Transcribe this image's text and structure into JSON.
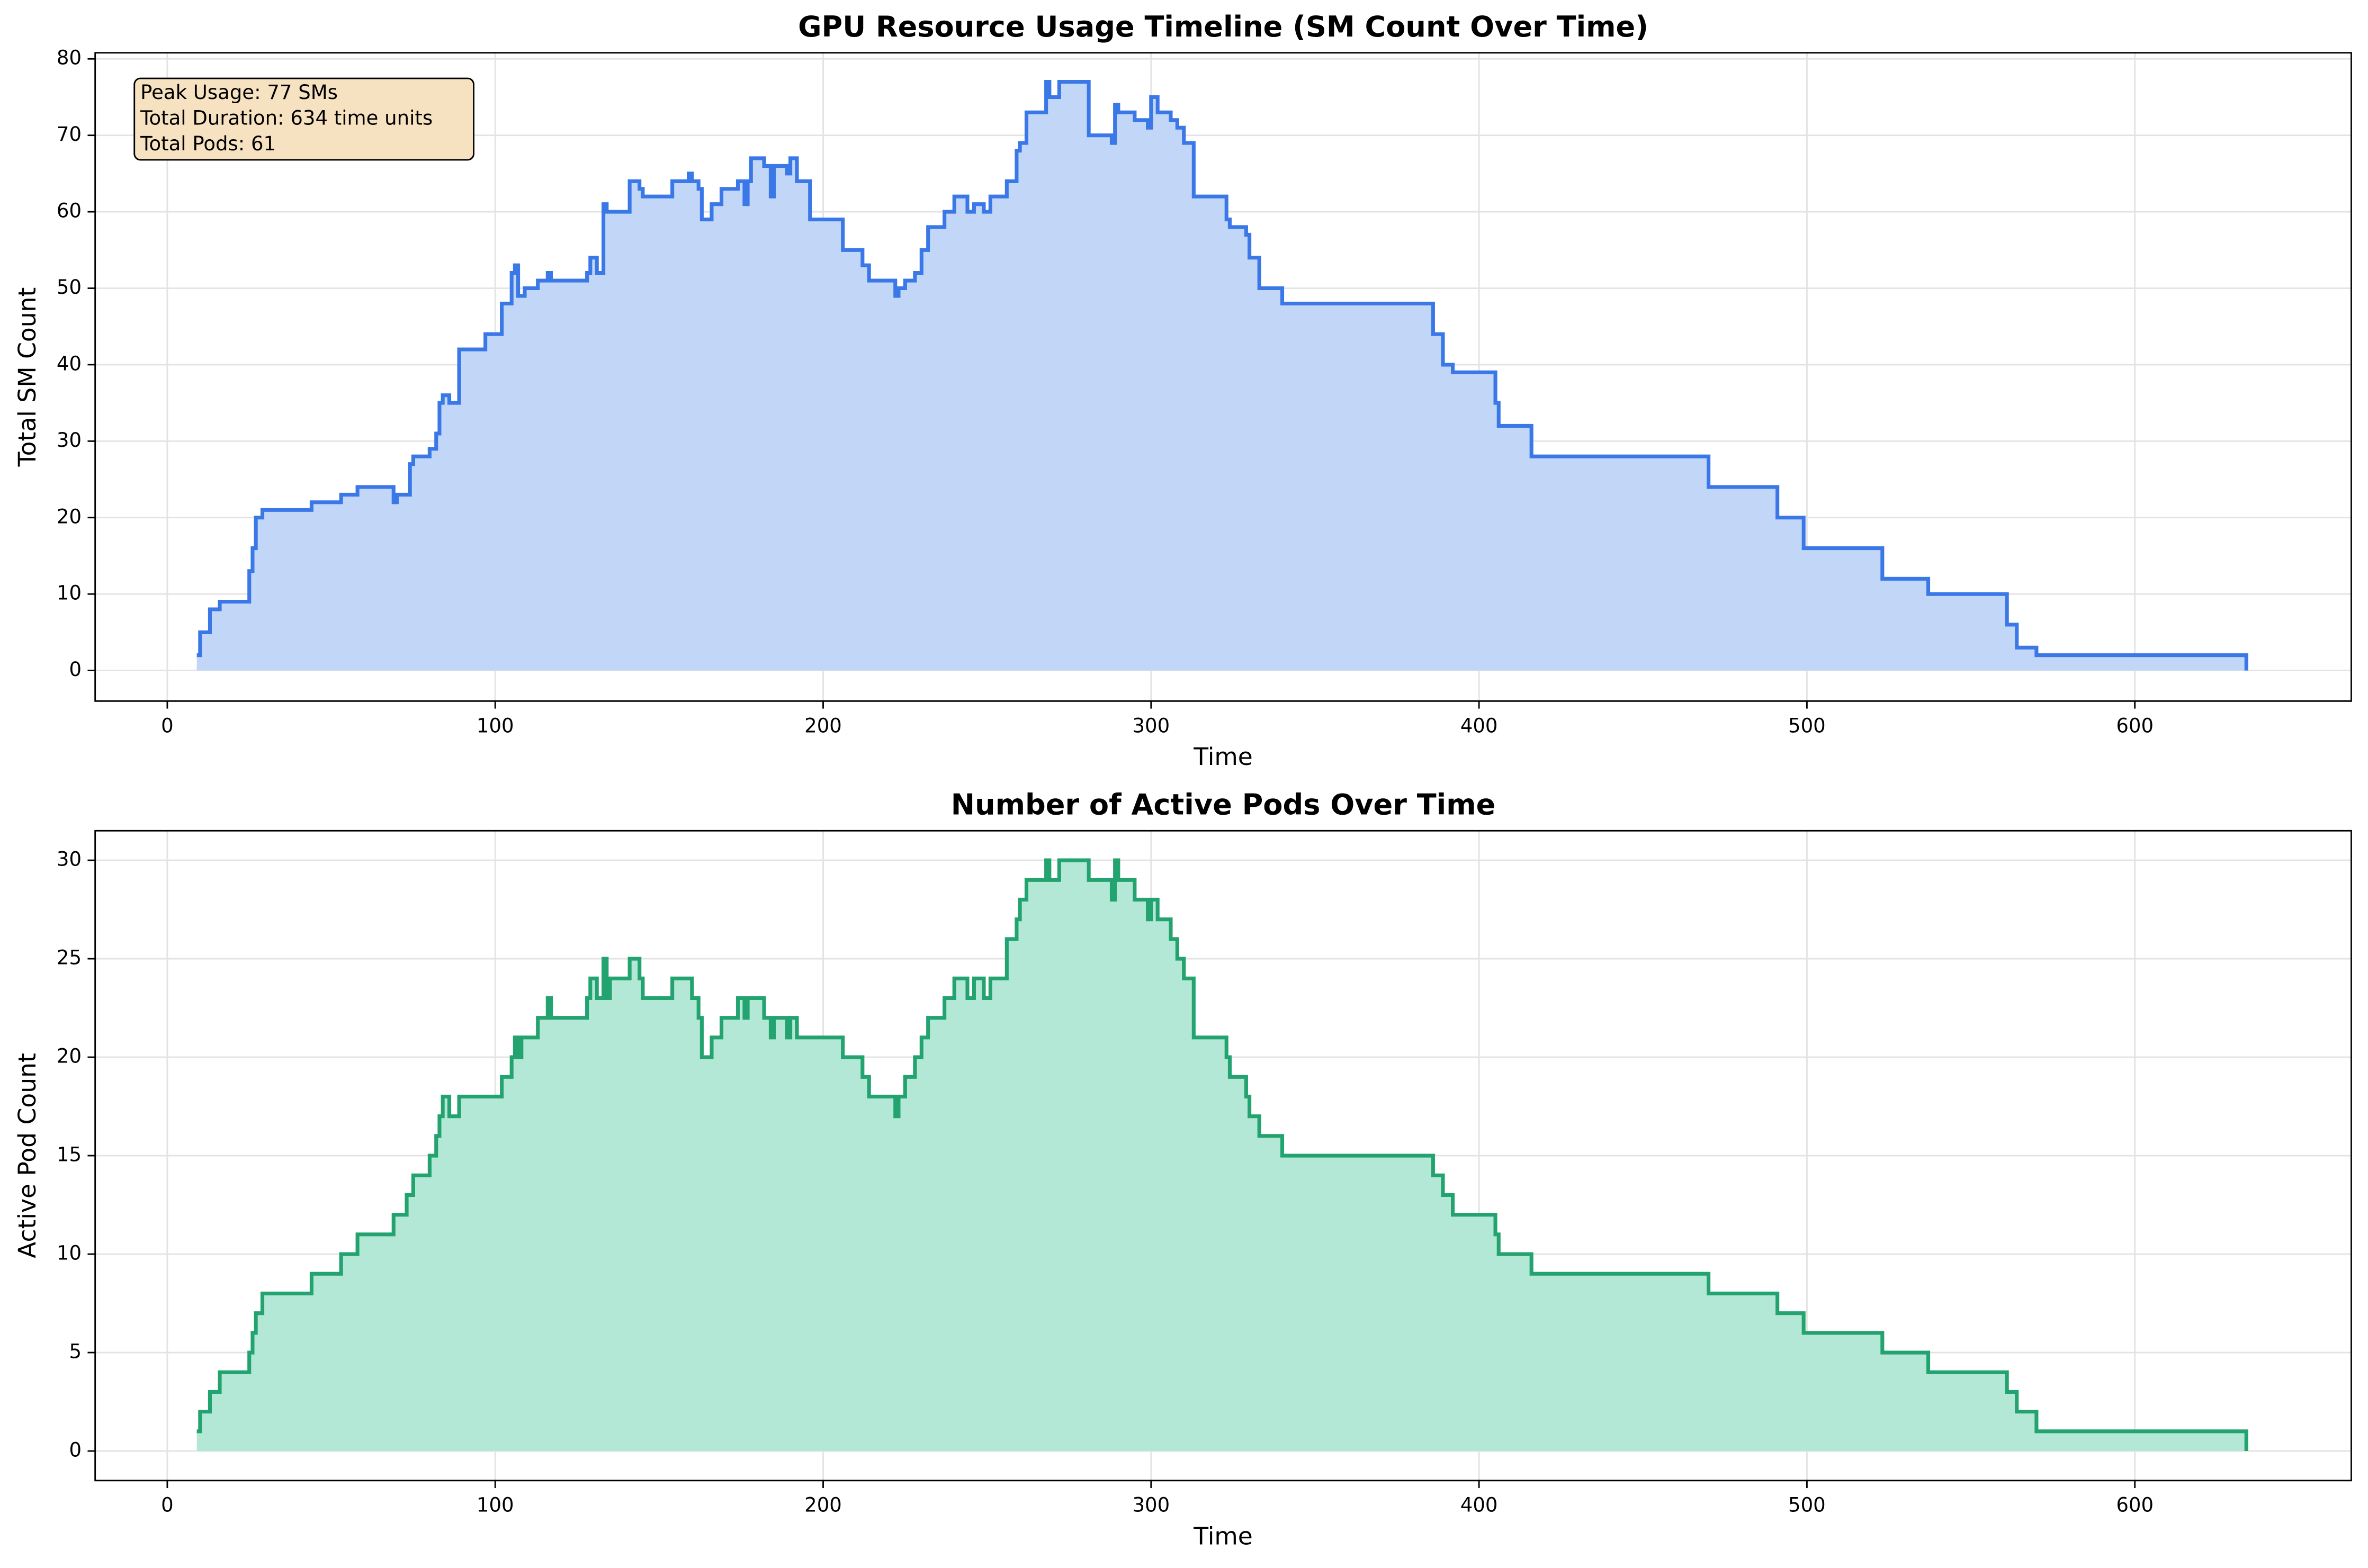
{
  "chart_data": [
    {
      "type": "step",
      "title": "GPU Resource Usage Timeline (SM Count Over Time)",
      "xlabel": "Time",
      "ylabel": "Total SM Count",
      "annotations": [
        "Peak Usage: 77 SMs",
        "Total Duration: 634 time units",
        "Total Pods: 61"
      ],
      "color": "#3b78e7",
      "fill": "#c2d7f8",
      "grid": true,
      "xlim": [
        -22,
        666
      ],
      "ylim": [
        -4,
        80.8
      ],
      "xticks": [
        0,
        100,
        200,
        300,
        400,
        500,
        600
      ],
      "yticks": [
        0,
        10,
        20,
        30,
        40,
        50,
        60,
        70,
        80
      ],
      "x": [
        9,
        10,
        13,
        16,
        25,
        26,
        27,
        29,
        44,
        53,
        58,
        69,
        70,
        74,
        75,
        80,
        82,
        83,
        84,
        86,
        89,
        97,
        102,
        105,
        106,
        107,
        109,
        113,
        116,
        117,
        128,
        129,
        131,
        133,
        134,
        141,
        144,
        145,
        154,
        159,
        160,
        162,
        163,
        166,
        169,
        174,
        176,
        177,
        178,
        182,
        184,
        185,
        189,
        190,
        192,
        196,
        206,
        212,
        214,
        222,
        223,
        225,
        228,
        230,
        232,
        237,
        240,
        244,
        246,
        249,
        251,
        256,
        259,
        260,
        262,
        268,
        269,
        272,
        281,
        288,
        289,
        290,
        295,
        299,
        300,
        302,
        306,
        308,
        310,
        313,
        323,
        324,
        329,
        330,
        333,
        340,
        386,
        389,
        392,
        405,
        406,
        416,
        470,
        491,
        499,
        523,
        537,
        561,
        564,
        570,
        634
      ],
      "values": [
        2,
        5,
        8,
        9,
        13,
        16,
        20,
        21,
        22,
        23,
        24,
        22,
        23,
        27,
        28,
        29,
        31,
        35,
        36,
        35,
        42,
        44,
        48,
        52,
        53,
        49,
        50,
        51,
        52,
        51,
        52,
        54,
        52,
        61,
        60,
        64,
        63,
        62,
        64,
        65,
        64,
        63,
        59,
        61,
        63,
        64,
        61,
        64,
        67,
        66,
        62,
        66,
        65,
        67,
        64,
        59,
        55,
        53,
        51,
        49,
        50,
        51,
        52,
        55,
        58,
        60,
        62,
        60,
        61,
        60,
        62,
        64,
        68,
        69,
        73,
        77,
        75,
        77,
        70,
        69,
        74,
        73,
        72,
        71,
        75,
        73,
        72,
        71,
        69,
        62,
        59,
        58,
        57,
        54,
        50,
        48,
        44,
        40,
        39,
        35,
        32,
        28,
        24,
        20,
        16,
        12,
        10,
        6,
        3,
        2,
        0
      ]
    },
    {
      "type": "step",
      "title": "Number of Active Pods Over Time",
      "xlabel": "Time",
      "ylabel": "Active Pod Count",
      "color": "#23a36f",
      "fill": "#b4e8d6",
      "grid": true,
      "xlim": [
        -22,
        666
      ],
      "ylim": [
        -1.5,
        31.5
      ],
      "xticks": [
        0,
        100,
        200,
        300,
        400,
        500,
        600
      ],
      "yticks": [
        0,
        5,
        10,
        15,
        20,
        25,
        30
      ],
      "x": [
        9,
        10,
        13,
        16,
        25,
        26,
        27,
        29,
        44,
        53,
        58,
        69,
        73,
        75,
        80,
        82,
        83,
        84,
        86,
        89,
        102,
        105,
        106,
        107,
        108,
        113,
        116,
        117,
        128,
        129,
        131,
        133,
        134,
        135,
        141,
        144,
        145,
        154,
        160,
        162,
        163,
        166,
        169,
        174,
        176,
        177,
        182,
        184,
        185,
        189,
        190,
        192,
        206,
        212,
        214,
        222,
        223,
        225,
        228,
        230,
        232,
        237,
        240,
        244,
        246,
        249,
        251,
        256,
        259,
        260,
        262,
        268,
        269,
        272,
        281,
        288,
        289,
        290,
        295,
        299,
        300,
        302,
        306,
        308,
        310,
        313,
        323,
        324,
        329,
        330,
        333,
        340,
        386,
        389,
        392,
        405,
        406,
        416,
        470,
        491,
        499,
        523,
        537,
        561,
        564,
        570,
        634
      ],
      "values": [
        1,
        2,
        3,
        4,
        5,
        6,
        7,
        8,
        9,
        10,
        11,
        12,
        13,
        14,
        15,
        16,
        17,
        18,
        17,
        18,
        19,
        20,
        21,
        20,
        21,
        22,
        23,
        22,
        23,
        24,
        23,
        25,
        23,
        24,
        25,
        24,
        23,
        24,
        23,
        22,
        20,
        21,
        22,
        23,
        22,
        23,
        22,
        21,
        22,
        21,
        22,
        21,
        20,
        19,
        18,
        17,
        18,
        19,
        20,
        21,
        22,
        23,
        24,
        23,
        24,
        23,
        24,
        26,
        27,
        28,
        29,
        30,
        29,
        30,
        29,
        28,
        30,
        29,
        28,
        27,
        28,
        27,
        26,
        25,
        24,
        21,
        20,
        19,
        18,
        17,
        16,
        15,
        14,
        13,
        12,
        11,
        10,
        9,
        8,
        7,
        6,
        5,
        4,
        3,
        2,
        1,
        0
      ]
    }
  ]
}
